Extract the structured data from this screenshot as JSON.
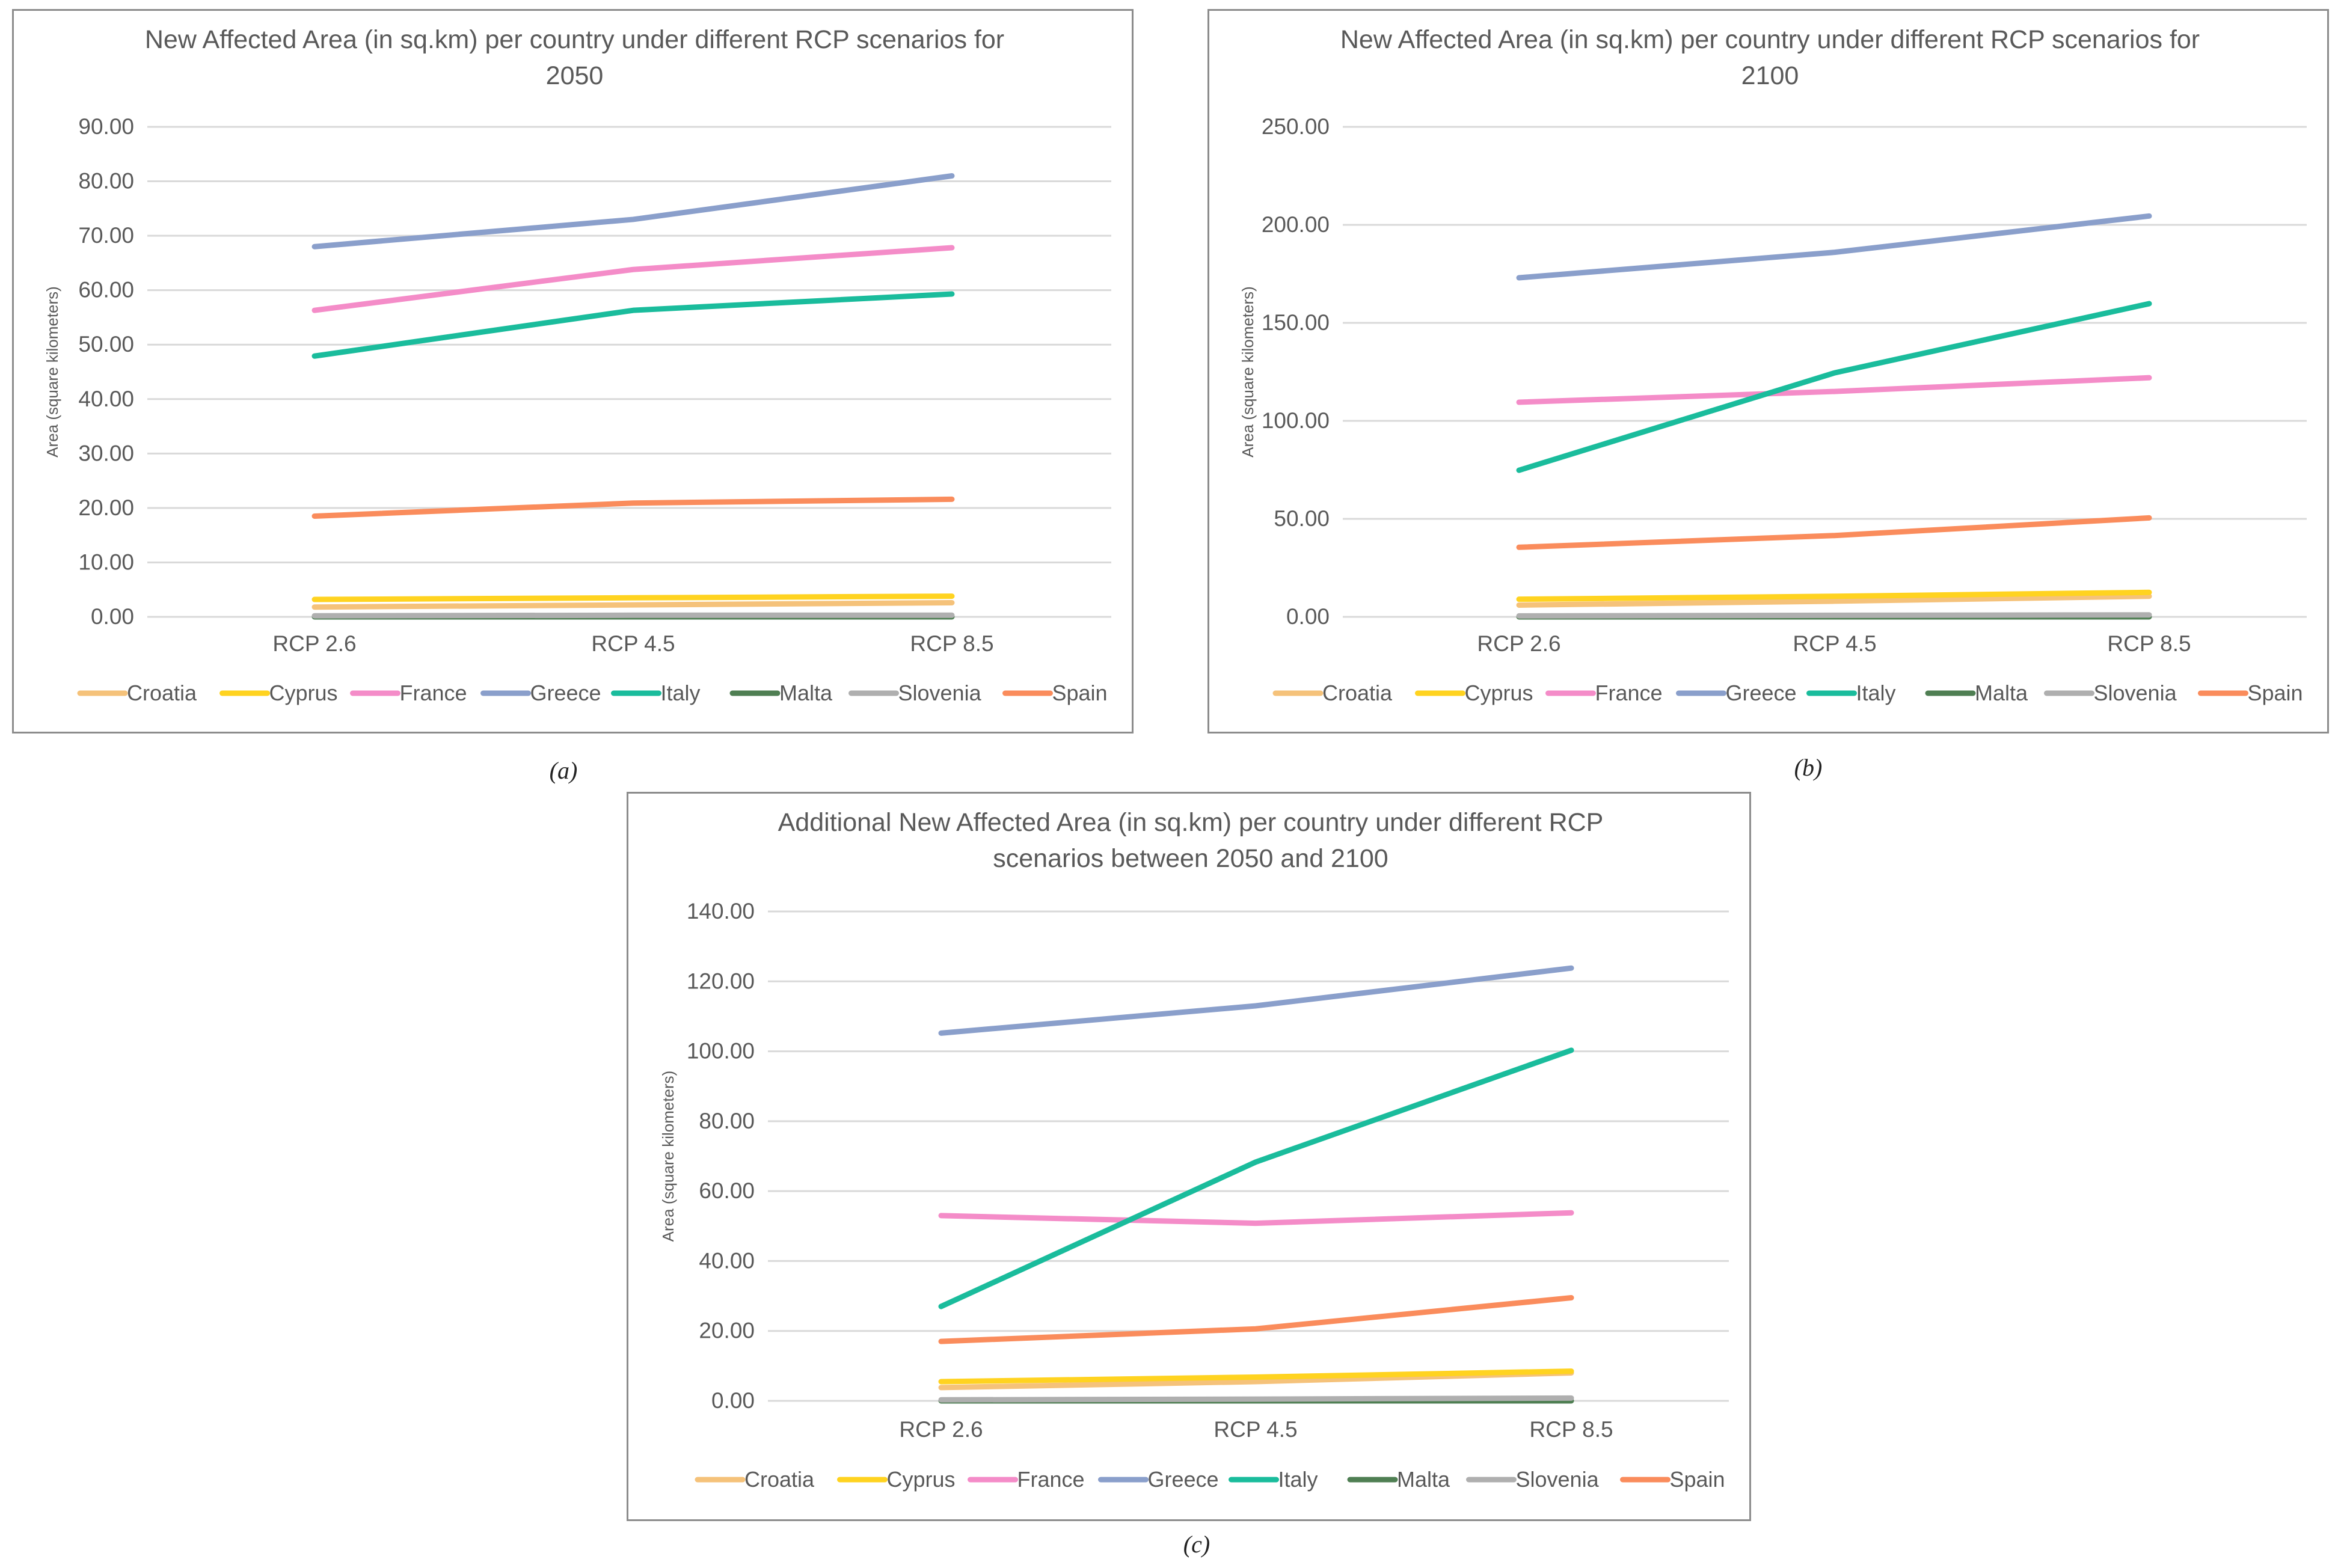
{
  "chart_data": [
    {
      "type": "line",
      "panel": "a",
      "title": [
        "New Affected Area (in sq.km) per country under different RCP scenarios for",
        "2050"
      ],
      "ylabel": "Area (square kilometers)",
      "categories": [
        "RCP 2.6",
        "RCP 4.5",
        "RCP 8.5"
      ],
      "yticks": [
        "0.00",
        "10.00",
        "20.00",
        "30.00",
        "40.00",
        "50.00",
        "60.00",
        "70.00",
        "80.00",
        "90.00"
      ],
      "ylim": [
        0,
        90
      ],
      "grid": true,
      "legend_position": "bottom",
      "series": [
        {
          "name": "Croatia",
          "color": "#F5C27A",
          "values": [
            1.8,
            2.2,
            2.6
          ]
        },
        {
          "name": "Cyprus",
          "color": "#FFD320",
          "values": [
            3.2,
            3.5,
            3.8
          ]
        },
        {
          "name": "France",
          "color": "#F48CC8",
          "values": [
            56.3,
            63.8,
            67.8
          ]
        },
        {
          "name": "Greece",
          "color": "#8A9FCB",
          "values": [
            68.0,
            73.0,
            81.0
          ]
        },
        {
          "name": "Italy",
          "color": "#1ABC9C",
          "values": [
            47.9,
            56.3,
            59.3
          ]
        },
        {
          "name": "Malta",
          "color": "#4F7F53",
          "values": [
            0.0,
            0.0,
            0.0
          ]
        },
        {
          "name": "Slovenia",
          "color": "#AFAFAF",
          "values": [
            0.2,
            0.3,
            0.3
          ]
        },
        {
          "name": "Spain",
          "color": "#FA8C5C",
          "values": [
            18.5,
            20.9,
            21.6
          ]
        }
      ]
    },
    {
      "type": "line",
      "panel": "b",
      "title": [
        "New Affected Area (in sq.km) per country under different RCP scenarios for",
        "2100"
      ],
      "ylabel": "Area (square kilometers)",
      "categories": [
        "RCP 2.6",
        "RCP 4.5",
        "RCP 8.5"
      ],
      "yticks": [
        "0.00",
        "50.00",
        "100.00",
        "150.00",
        "200.00",
        "250.00"
      ],
      "ylim": [
        0,
        250
      ],
      "grid": true,
      "legend_position": "bottom",
      "series": [
        {
          "name": "Croatia",
          "color": "#F5C27A",
          "values": [
            6.0,
            8.0,
            10.5
          ]
        },
        {
          "name": "Cyprus",
          "color": "#FFD320",
          "values": [
            9.0,
            10.5,
            12.5
          ]
        },
        {
          "name": "France",
          "color": "#F48CC8",
          "values": [
            109.5,
            115.0,
            122.0
          ]
        },
        {
          "name": "Greece",
          "color": "#8A9FCB",
          "values": [
            173.0,
            186.0,
            204.5
          ]
        },
        {
          "name": "Italy",
          "color": "#1ABC9C",
          "values": [
            74.8,
            124.5,
            159.8
          ]
        },
        {
          "name": "Malta",
          "color": "#4F7F53",
          "values": [
            0.0,
            0.0,
            0.0
          ]
        },
        {
          "name": "Slovenia",
          "color": "#AFAFAF",
          "values": [
            0.5,
            0.8,
            1.0
          ]
        },
        {
          "name": "Spain",
          "color": "#FA8C5C",
          "values": [
            35.5,
            41.5,
            50.5
          ]
        }
      ]
    },
    {
      "type": "line",
      "panel": "c",
      "title": [
        "Additional New Affected Area (in sq.km) per country under different RCP",
        "scenarios between 2050 and 2100"
      ],
      "ylabel": "Area (square kilometers)",
      "categories": [
        "RCP 2.6",
        "RCP 4.5",
        "RCP 8.5"
      ],
      "yticks": [
        "0.00",
        "20.00",
        "40.00",
        "60.00",
        "80.00",
        "100.00",
        "120.00",
        "140.00"
      ],
      "ylim": [
        0,
        140
      ],
      "grid": true,
      "legend_position": "bottom",
      "series": [
        {
          "name": "Croatia",
          "color": "#F5C27A",
          "values": [
            3.8,
            5.5,
            8.0
          ]
        },
        {
          "name": "Cyprus",
          "color": "#FFD320",
          "values": [
            5.5,
            6.8,
            8.5
          ]
        },
        {
          "name": "France",
          "color": "#F48CC8",
          "values": [
            53.0,
            50.8,
            53.8
          ]
        },
        {
          "name": "Greece",
          "color": "#8A9FCB",
          "values": [
            105.2,
            113.0,
            123.8
          ]
        },
        {
          "name": "Italy",
          "color": "#1ABC9C",
          "values": [
            27.0,
            68.3,
            100.3
          ]
        },
        {
          "name": "Malta",
          "color": "#4F7F53",
          "values": [
            0.0,
            0.0,
            0.0
          ]
        },
        {
          "name": "Slovenia",
          "color": "#AFAFAF",
          "values": [
            0.3,
            0.5,
            0.8
          ]
        },
        {
          "name": "Spain",
          "color": "#FA8C5C",
          "values": [
            17.0,
            20.6,
            29.5
          ]
        }
      ]
    }
  ],
  "captions": {
    "a": "(a)",
    "b": "(b)",
    "c": "(c)"
  }
}
